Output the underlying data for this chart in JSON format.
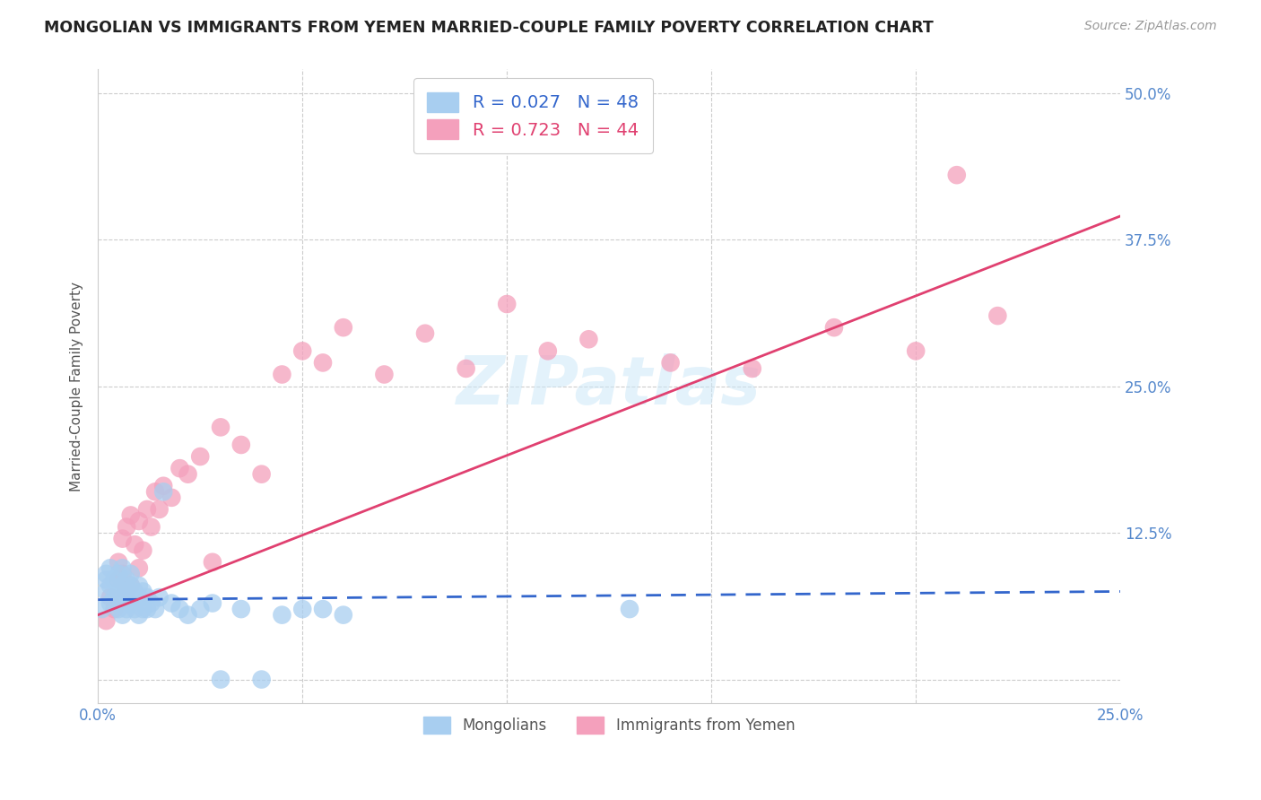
{
  "title": "MONGOLIAN VS IMMIGRANTS FROM YEMEN MARRIED-COUPLE FAMILY POVERTY CORRELATION CHART",
  "source": "Source: ZipAtlas.com",
  "ylabel": "Married-Couple Family Poverty",
  "xlim": [
    0.0,
    0.25
  ],
  "ylim": [
    -0.02,
    0.52
  ],
  "ytick_positions": [
    0.0,
    0.125,
    0.25,
    0.375,
    0.5
  ],
  "ytick_labels": [
    "",
    "12.5%",
    "25.0%",
    "37.5%",
    "50.0%"
  ],
  "xtick_positions": [
    0.0,
    0.05,
    0.1,
    0.15,
    0.2,
    0.25
  ],
  "xtick_labels": [
    "0.0%",
    "",
    "",
    "",
    "",
    "25.0%"
  ],
  "grid_color": "#cccccc",
  "background_color": "#ffffff",
  "watermark": "ZIPatlas",
  "legend_r1": "R = 0.027",
  "legend_n1": "N = 48",
  "legend_r2": "R = 0.723",
  "legend_n2": "N = 44",
  "series1_color": "#a8cef0",
  "series2_color": "#f4a0bc",
  "line1_color": "#3366cc",
  "line2_color": "#e04070",
  "series1_label": "Mongolians",
  "series2_label": "Immigrants from Yemen",
  "mongo_x": [
    0.001,
    0.002,
    0.002,
    0.002,
    0.003,
    0.003,
    0.003,
    0.004,
    0.004,
    0.005,
    0.005,
    0.005,
    0.006,
    0.006,
    0.006,
    0.006,
    0.007,
    0.007,
    0.007,
    0.008,
    0.008,
    0.008,
    0.009,
    0.009,
    0.01,
    0.01,
    0.01,
    0.011,
    0.011,
    0.012,
    0.012,
    0.013,
    0.014,
    0.015,
    0.016,
    0.018,
    0.02,
    0.022,
    0.025,
    0.028,
    0.03,
    0.035,
    0.04,
    0.045,
    0.05,
    0.055,
    0.06,
    0.13
  ],
  "mongo_y": [
    0.06,
    0.075,
    0.085,
    0.09,
    0.065,
    0.08,
    0.095,
    0.07,
    0.085,
    0.06,
    0.075,
    0.09,
    0.055,
    0.07,
    0.08,
    0.095,
    0.06,
    0.075,
    0.085,
    0.065,
    0.08,
    0.09,
    0.06,
    0.075,
    0.055,
    0.07,
    0.08,
    0.06,
    0.075,
    0.06,
    0.07,
    0.065,
    0.06,
    0.07,
    0.16,
    0.065,
    0.06,
    0.055,
    0.06,
    0.065,
    0.0,
    0.06,
    0.0,
    0.055,
    0.06,
    0.06,
    0.055,
    0.06
  ],
  "yemen_x": [
    0.002,
    0.003,
    0.004,
    0.005,
    0.005,
    0.006,
    0.006,
    0.007,
    0.007,
    0.008,
    0.008,
    0.009,
    0.01,
    0.01,
    0.011,
    0.012,
    0.013,
    0.014,
    0.015,
    0.016,
    0.018,
    0.02,
    0.022,
    0.025,
    0.028,
    0.03,
    0.035,
    0.04,
    0.045,
    0.05,
    0.055,
    0.06,
    0.07,
    0.08,
    0.09,
    0.1,
    0.11,
    0.12,
    0.14,
    0.16,
    0.18,
    0.2,
    0.21,
    0.22
  ],
  "yemen_y": [
    0.05,
    0.07,
    0.06,
    0.085,
    0.1,
    0.09,
    0.12,
    0.075,
    0.13,
    0.08,
    0.14,
    0.115,
    0.095,
    0.135,
    0.11,
    0.145,
    0.13,
    0.16,
    0.145,
    0.165,
    0.155,
    0.18,
    0.175,
    0.19,
    0.1,
    0.215,
    0.2,
    0.175,
    0.26,
    0.28,
    0.27,
    0.3,
    0.26,
    0.295,
    0.265,
    0.32,
    0.28,
    0.29,
    0.27,
    0.265,
    0.3,
    0.28,
    0.43,
    0.31
  ],
  "mongo_line_x": [
    0.0,
    0.25
  ],
  "mongo_line_y": [
    0.068,
    0.075
  ],
  "yemen_line_x": [
    0.0,
    0.25
  ],
  "yemen_line_y": [
    0.055,
    0.395
  ]
}
